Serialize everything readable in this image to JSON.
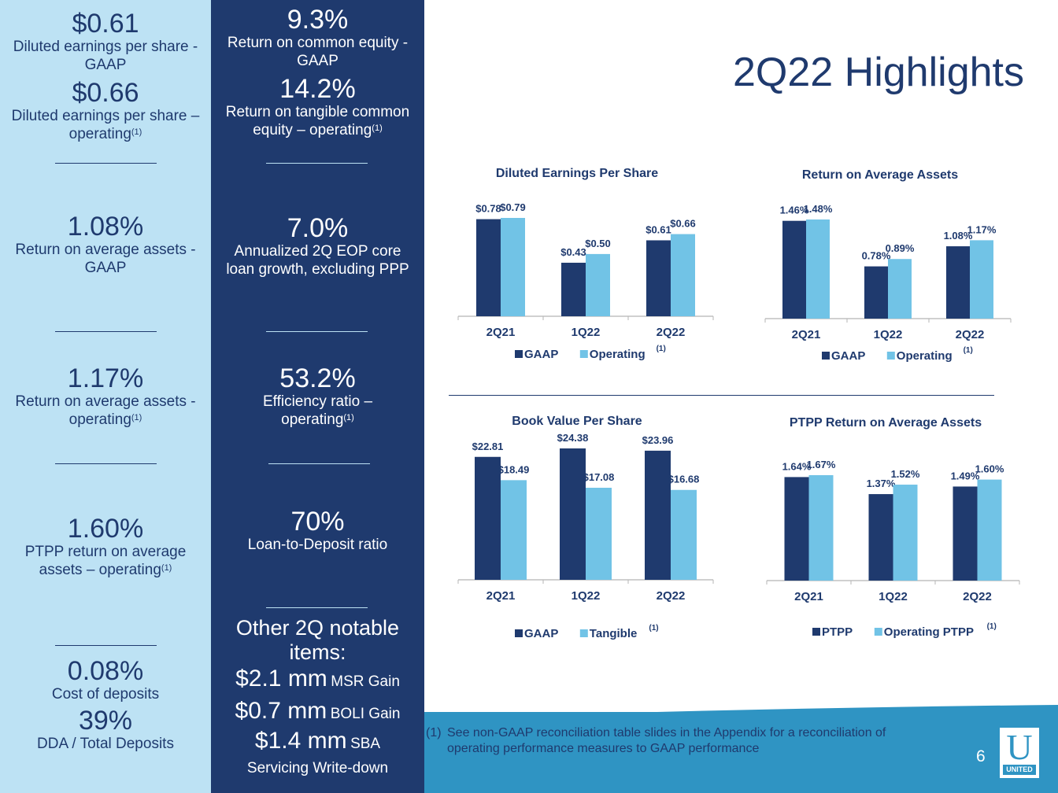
{
  "title": "2Q22 Highlights",
  "colors": {
    "navy": "#1f3a6e",
    "light_blue": "#71c3e6",
    "panel_light": "#bde2f4",
    "footer_blue": "#2f94c3"
  },
  "left_column": {
    "metrics": [
      {
        "value": "$0.61",
        "label": "Diluted earnings per share - GAAP"
      },
      {
        "value": "$0.66",
        "label": "Diluted earnings per share – operating",
        "footnote": "(1)"
      },
      {
        "value": "1.08%",
        "label": "Return on average assets - GAAP"
      },
      {
        "value": "1.17%",
        "label": "Return on average assets - operating",
        "footnote": "(1)"
      },
      {
        "value": "1.60%",
        "label": "PTPP return on average assets – operating",
        "footnote": "(1)"
      },
      {
        "value": "0.08%",
        "label": "Cost of deposits"
      },
      {
        "value": "39%",
        "label": "DDA / Total Deposits"
      }
    ]
  },
  "middle_column": {
    "metrics": [
      {
        "value": "9.3%",
        "label": "Return on common equity - GAAP"
      },
      {
        "value": "14.2%",
        "label": "Return on tangible common equity – operating",
        "footnote": "(1)"
      },
      {
        "value": "7.0%",
        "label": "Annualized 2Q EOP core loan growth, excluding PPP"
      },
      {
        "value": "53.2%",
        "label": "Efficiency ratio – operating",
        "footnote": "(1)"
      },
      {
        "value": "70%",
        "label": "Loan-to-Deposit ratio"
      }
    ],
    "notable": {
      "heading": "Other 2Q notable items:",
      "items": [
        {
          "amount": "$2.1 mm",
          "description": "MSR Gain"
        },
        {
          "amount": "$0.7 mm",
          "description": "BOLI Gain"
        },
        {
          "amount": "$1.4 mm",
          "description": "SBA Servicing Write-down"
        }
      ]
    }
  },
  "chart_data": [
    {
      "type": "bar",
      "title": "Diluted Earnings Per Share",
      "categories": [
        "2Q21",
        "1Q22",
        "2Q22"
      ],
      "series": [
        {
          "name": "GAAP",
          "values": [
            0.78,
            0.43,
            0.61
          ],
          "labels": [
            "$0.78",
            "$0.43",
            "$0.61"
          ],
          "color": "#1f3a6e"
        },
        {
          "name": "Operating",
          "footnote": "(1)",
          "values": [
            0.79,
            0.5,
            0.66
          ],
          "labels": [
            "$0.79",
            "$0.50",
            "$0.66"
          ],
          "color": "#71c3e6"
        }
      ],
      "ylim": [
        0,
        0.79
      ],
      "legend": "bottom"
    },
    {
      "type": "bar",
      "title": "Return on Average Assets",
      "categories": [
        "2Q21",
        "1Q22",
        "2Q22"
      ],
      "series": [
        {
          "name": "GAAP",
          "values": [
            1.46,
            0.78,
            1.08
          ],
          "labels": [
            "1.46%",
            "0.78%",
            "1.08%"
          ],
          "color": "#1f3a6e"
        },
        {
          "name": "Operating",
          "footnote": "(1)",
          "values": [
            1.48,
            0.89,
            1.17
          ],
          "labels": [
            "1.48%",
            "0.89%",
            "1.17%"
          ],
          "color": "#71c3e6"
        }
      ],
      "ylim": [
        0,
        1.48
      ],
      "legend": "bottom"
    },
    {
      "type": "bar",
      "title": "Book Value Per Share",
      "categories": [
        "2Q21",
        "1Q22",
        "2Q22"
      ],
      "series": [
        {
          "name": "GAAP",
          "values": [
            22.81,
            24.38,
            23.96
          ],
          "labels": [
            "$22.81",
            "$24.38",
            "$23.96"
          ],
          "color": "#1f3a6e"
        },
        {
          "name": "Tangible",
          "footnote": "(1)",
          "values": [
            18.49,
            17.08,
            16.68
          ],
          "labels": [
            "$18.49",
            "$17.08",
            "$16.68"
          ],
          "color": "#71c3e6"
        }
      ],
      "ylim": [
        0,
        24.38
      ],
      "legend": "bottom"
    },
    {
      "type": "bar",
      "title": "PTPP Return on Average Assets",
      "categories": [
        "2Q21",
        "1Q22",
        "2Q22"
      ],
      "series": [
        {
          "name": "PTPP",
          "values": [
            1.64,
            1.37,
            1.49
          ],
          "labels": [
            "1.64%",
            "1.37%",
            "1.49%"
          ],
          "color": "#1f3a6e"
        },
        {
          "name": "Operating PTPP",
          "footnote": "(1)",
          "values": [
            1.67,
            1.52,
            1.6
          ],
          "labels": [
            "1.67%",
            "1.52%",
            "1.60%"
          ],
          "color": "#71c3e6"
        }
      ],
      "ylim": [
        0,
        1.67
      ],
      "legend": "bottom"
    }
  ],
  "footer": {
    "footnote_marker": "(1)",
    "footnote_text": "See non-GAAP reconciliation table slides in the Appendix for a reconciliation of operating performance measures to GAAP performance",
    "page_number": "6",
    "logo_letter": "U",
    "logo_word": "UNITED"
  }
}
